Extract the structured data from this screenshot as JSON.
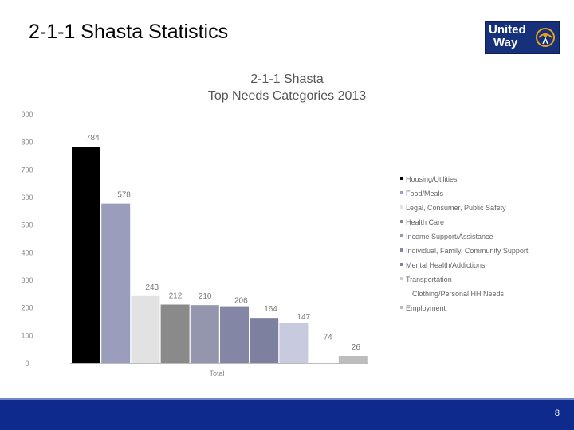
{
  "slide": {
    "title": "2-1-1 Shasta Statistics",
    "page_number": "8"
  },
  "logo": {
    "line1": "United",
    "line2": "Way",
    "colors": {
      "background": "#16307a",
      "emblem": "#e8a21a"
    }
  },
  "chart_data": {
    "type": "bar",
    "title_lines": [
      "2-1-1 Shasta",
      "Top Needs Categories 2013"
    ],
    "categories": [
      "Total"
    ],
    "series": [
      {
        "name": "Housing/Utilities",
        "value": 784,
        "color": "#000000"
      },
      {
        "name": "Food/Meals",
        "value": 578,
        "color": "#9b9dbd"
      },
      {
        "name": "Legal, Consumer, Public Safety",
        "value": 243,
        "color": "#e2e2e2"
      },
      {
        "name": "Health Care",
        "value": 212,
        "color": "#8a8a8a"
      },
      {
        "name": "Income Support/Assistance",
        "value": 210,
        "color": "#9496ae"
      },
      {
        "name": "Individual, Family, Community Support",
        "value": 206,
        "color": "#8486a6"
      },
      {
        "name": "Mental Health/Addictions",
        "value": 164,
        "color": "#7e80a0"
      },
      {
        "name": "Transportation",
        "value": 147,
        "color": "#c8cae0"
      },
      {
        "name": "Clothing/Personal HH Needs",
        "value": 74,
        "color": "#ffffff"
      },
      {
        "name": "Employment",
        "value": 26,
        "color": "#bdbdbd"
      }
    ],
    "ylim": [
      0,
      900
    ],
    "yticks": [
      0,
      100,
      200,
      300,
      400,
      500,
      600,
      700,
      800,
      900
    ],
    "grid": false,
    "legend_position": "right"
  }
}
